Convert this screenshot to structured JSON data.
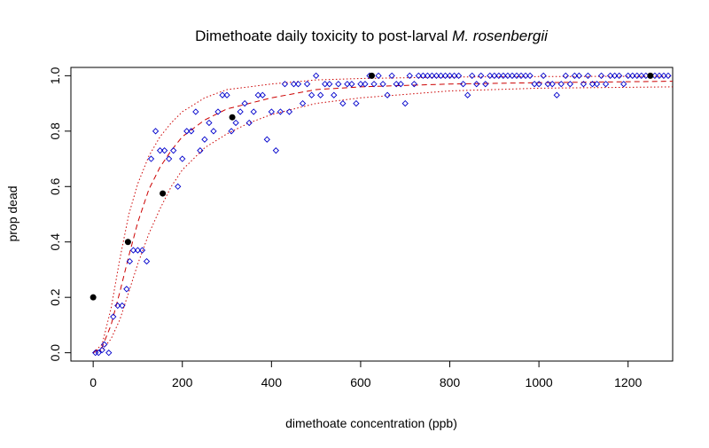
{
  "chart_data": {
    "type": "scatter",
    "title_main": "Dimethoate daily toxicity to post-larval ",
    "title_italic": "M. rosenbergii",
    "xlabel": "dimethoate concentration (ppb)",
    "ylabel": "prop dead",
    "xlim": [
      -50,
      1300
    ],
    "ylim": [
      -0.03,
      1.03
    ],
    "xticks": [
      "0",
      "200",
      "400",
      "600",
      "800",
      "1000",
      "1200"
    ],
    "yticks": [
      "0.0",
      "0.2",
      "0.4",
      "0.6",
      "0.8",
      "1.0"
    ],
    "grid": false,
    "colors": {
      "open_points": "#0000cc",
      "observed": "#000000",
      "fit": "#cc0000"
    },
    "series": [
      {
        "marker": "open-diamond",
        "points": [
          [
            5,
            0
          ],
          [
            12,
            0
          ],
          [
            20,
            0.01
          ],
          [
            25,
            0.03
          ],
          [
            35,
            0
          ],
          [
            45,
            0.13
          ],
          [
            55,
            0.17
          ],
          [
            65,
            0.17
          ],
          [
            75,
            0.23
          ],
          [
            82,
            0.33
          ],
          [
            90,
            0.37
          ],
          [
            100,
            0.37
          ],
          [
            110,
            0.37
          ],
          [
            120,
            0.33
          ],
          [
            130,
            0.7
          ],
          [
            140,
            0.8
          ],
          [
            150,
            0.73
          ],
          [
            160,
            0.73
          ],
          [
            170,
            0.7
          ],
          [
            180,
            0.73
          ],
          [
            190,
            0.6
          ],
          [
            200,
            0.7
          ],
          [
            210,
            0.8
          ],
          [
            220,
            0.8
          ],
          [
            230,
            0.87
          ],
          [
            240,
            0.73
          ],
          [
            250,
            0.77
          ],
          [
            260,
            0.83
          ],
          [
            270,
            0.8
          ],
          [
            280,
            0.87
          ],
          [
            290,
            0.93
          ],
          [
            300,
            0.93
          ],
          [
            310,
            0.8
          ],
          [
            320,
            0.83
          ],
          [
            330,
            0.87
          ],
          [
            340,
            0.9
          ],
          [
            350,
            0.83
          ],
          [
            360,
            0.87
          ],
          [
            370,
            0.93
          ],
          [
            380,
            0.93
          ],
          [
            390,
            0.77
          ],
          [
            400,
            0.87
          ],
          [
            410,
            0.73
          ],
          [
            420,
            0.87
          ],
          [
            430,
            0.97
          ],
          [
            440,
            0.87
          ],
          [
            450,
            0.97
          ],
          [
            460,
            0.97
          ],
          [
            470,
            0.9
          ],
          [
            480,
            0.97
          ],
          [
            490,
            0.93
          ],
          [
            500,
            1.0
          ],
          [
            510,
            0.93
          ],
          [
            520,
            0.97
          ],
          [
            530,
            0.97
          ],
          [
            540,
            0.93
          ],
          [
            550,
            0.97
          ],
          [
            560,
            0.9
          ],
          [
            570,
            0.97
          ],
          [
            580,
            0.97
          ],
          [
            590,
            0.9
          ],
          [
            600,
            0.97
          ],
          [
            610,
            0.97
          ],
          [
            620,
            1.0
          ],
          [
            630,
            0.97
          ],
          [
            640,
            1.0
          ],
          [
            650,
            0.97
          ],
          [
            660,
            0.93
          ],
          [
            670,
            1.0
          ],
          [
            680,
            0.97
          ],
          [
            690,
            0.97
          ],
          [
            700,
            0.9
          ],
          [
            710,
            1.0
          ],
          [
            720,
            0.97
          ],
          [
            730,
            1.0
          ],
          [
            740,
            1.0
          ],
          [
            750,
            1.0
          ],
          [
            760,
            1.0
          ],
          [
            770,
            1.0
          ],
          [
            780,
            1.0
          ],
          [
            790,
            1.0
          ],
          [
            800,
            1.0
          ],
          [
            810,
            1.0
          ],
          [
            820,
            1.0
          ],
          [
            830,
            0.97
          ],
          [
            840,
            0.93
          ],
          [
            850,
            1.0
          ],
          [
            860,
            0.97
          ],
          [
            870,
            1.0
          ],
          [
            880,
            0.97
          ],
          [
            890,
            1.0
          ],
          [
            900,
            1.0
          ],
          [
            910,
            1.0
          ],
          [
            920,
            1.0
          ],
          [
            930,
            1.0
          ],
          [
            940,
            1.0
          ],
          [
            950,
            1.0
          ],
          [
            960,
            1.0
          ],
          [
            970,
            1.0
          ],
          [
            980,
            1.0
          ],
          [
            990,
            0.97
          ],
          [
            1000,
            0.97
          ],
          [
            1010,
            1.0
          ],
          [
            1020,
            0.97
          ],
          [
            1030,
            0.97
          ],
          [
            1040,
            0.93
          ],
          [
            1050,
            0.97
          ],
          [
            1060,
            1.0
          ],
          [
            1070,
            0.97
          ],
          [
            1080,
            1.0
          ],
          [
            1090,
            1.0
          ],
          [
            1100,
            0.97
          ],
          [
            1110,
            1.0
          ],
          [
            1120,
            0.97
          ],
          [
            1130,
            0.97
          ],
          [
            1140,
            1.0
          ],
          [
            1150,
            0.97
          ],
          [
            1160,
            1.0
          ],
          [
            1170,
            1.0
          ],
          [
            1180,
            1.0
          ],
          [
            1190,
            0.97
          ],
          [
            1200,
            1.0
          ],
          [
            1210,
            1.0
          ],
          [
            1220,
            1.0
          ],
          [
            1230,
            1.0
          ],
          [
            1240,
            1.0
          ],
          [
            1260,
            1.0
          ],
          [
            1270,
            1.0
          ],
          [
            1280,
            1.0
          ],
          [
            1290,
            1.0
          ]
        ]
      },
      {
        "marker": "filled-circle",
        "points": [
          [
            0,
            0.2
          ],
          [
            78,
            0.4
          ],
          [
            156,
            0.575
          ],
          [
            312,
            0.85
          ],
          [
            625,
            1.0
          ],
          [
            1250,
            1.0
          ]
        ]
      }
    ],
    "fit_curves": [
      {
        "style": "dashed",
        "points": [
          [
            0,
            0
          ],
          [
            20,
            0.02
          ],
          [
            40,
            0.1
          ],
          [
            60,
            0.22
          ],
          [
            80,
            0.35
          ],
          [
            100,
            0.47
          ],
          [
            125,
            0.59
          ],
          [
            150,
            0.67
          ],
          [
            175,
            0.73
          ],
          [
            200,
            0.78
          ],
          [
            250,
            0.84
          ],
          [
            300,
            0.88
          ],
          [
            350,
            0.9
          ],
          [
            400,
            0.92
          ],
          [
            500,
            0.95
          ],
          [
            600,
            0.96
          ],
          [
            800,
            0.97
          ],
          [
            1000,
            0.975
          ],
          [
            1300,
            0.98
          ]
        ]
      },
      {
        "style": "dotted",
        "points": [
          [
            0,
            0
          ],
          [
            20,
            0.03
          ],
          [
            40,
            0.16
          ],
          [
            60,
            0.34
          ],
          [
            80,
            0.5
          ],
          [
            100,
            0.61
          ],
          [
            125,
            0.71
          ],
          [
            150,
            0.78
          ],
          [
            175,
            0.83
          ],
          [
            200,
            0.87
          ],
          [
            250,
            0.92
          ],
          [
            300,
            0.95
          ],
          [
            350,
            0.96
          ],
          [
            400,
            0.97
          ],
          [
            500,
            0.985
          ],
          [
            600,
            0.99
          ],
          [
            800,
            0.995
          ],
          [
            1000,
            0.997
          ],
          [
            1300,
            0.998
          ]
        ]
      },
      {
        "style": "dotted",
        "points": [
          [
            0,
            0
          ],
          [
            20,
            0.01
          ],
          [
            40,
            0.05
          ],
          [
            60,
            0.12
          ],
          [
            80,
            0.22
          ],
          [
            100,
            0.32
          ],
          [
            125,
            0.43
          ],
          [
            150,
            0.52
          ],
          [
            175,
            0.6
          ],
          [
            200,
            0.66
          ],
          [
            250,
            0.74
          ],
          [
            300,
            0.79
          ],
          [
            350,
            0.83
          ],
          [
            400,
            0.86
          ],
          [
            500,
            0.9
          ],
          [
            600,
            0.92
          ],
          [
            800,
            0.945
          ],
          [
            1000,
            0.955
          ],
          [
            1300,
            0.96
          ]
        ]
      }
    ]
  }
}
